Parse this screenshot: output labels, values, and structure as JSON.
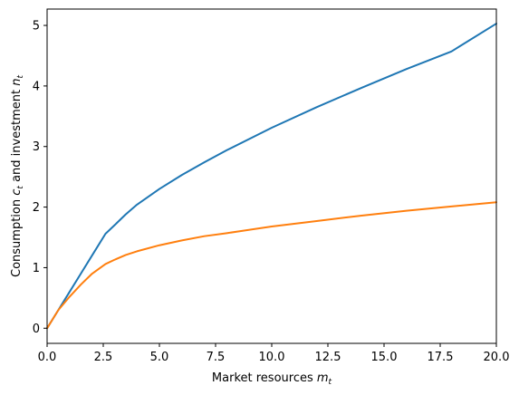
{
  "chart_data": {
    "type": "line",
    "title": "",
    "xlabel": "Market resources m_t",
    "ylabel": "Consumption c_t and investment n_t",
    "xlim": [
      0,
      20
    ],
    "ylim": [
      -0.25,
      5.27
    ],
    "xticks": [
      0,
      2.5,
      5,
      7.5,
      10,
      12.5,
      15,
      17.5,
      20
    ],
    "xtick_labels": [
      "0.0",
      "2.5",
      "5.0",
      "7.5",
      "10.0",
      "12.5",
      "15.0",
      "17.5",
      "20.0"
    ],
    "yticks": [
      0,
      1,
      2,
      3,
      4,
      5
    ],
    "ytick_labels": [
      "0",
      "1",
      "2",
      "3",
      "4",
      "5"
    ],
    "grid": false,
    "legend": "none",
    "series": [
      {
        "color": "#1f77b4",
        "x": [
          0,
          0.5,
          1,
          1.5,
          2,
          2.6,
          3,
          3.5,
          4,
          5,
          6,
          7,
          8,
          10,
          12,
          14,
          16,
          18,
          20
        ],
        "y": [
          0,
          0.3,
          0.6,
          0.9,
          1.2,
          1.56,
          1.7,
          1.88,
          2.04,
          2.3,
          2.53,
          2.74,
          2.94,
          3.31,
          3.65,
          3.97,
          4.28,
          4.57,
          5.03
        ]
      },
      {
        "color": "#ff7f0e",
        "x": [
          0,
          0.5,
          1,
          1.5,
          2,
          2.6,
          3,
          3.5,
          4,
          5,
          6,
          7,
          8,
          10,
          12,
          14,
          16,
          18,
          20
        ],
        "y": [
          0,
          0.3,
          0.52,
          0.72,
          0.9,
          1.06,
          1.13,
          1.21,
          1.27,
          1.37,
          1.45,
          1.52,
          1.57,
          1.68,
          1.77,
          1.86,
          1.94,
          2.01,
          2.08
        ]
      }
    ]
  }
}
